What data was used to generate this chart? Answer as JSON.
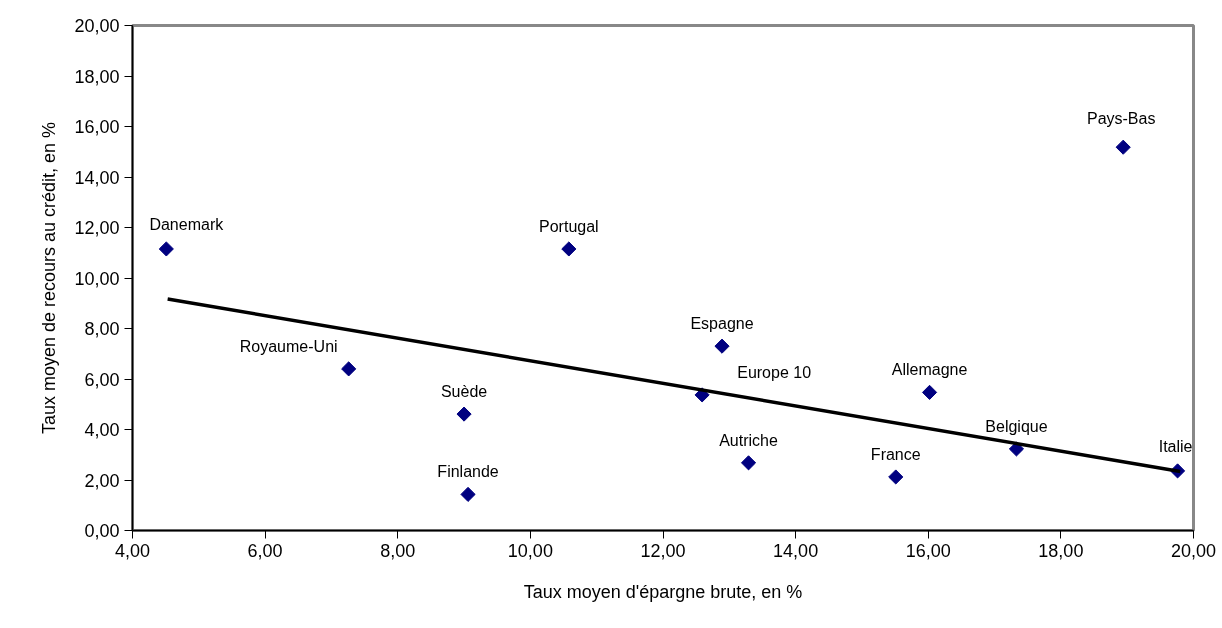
{
  "chart_data": {
    "type": "scatter",
    "xlabel": "Taux moyen d'épargne brute, en %",
    "ylabel": "Taux moyen de recours au crédit, en %",
    "xlim": [
      4,
      20
    ],
    "ylim": [
      0,
      20
    ],
    "xticks": [
      {
        "value": 4,
        "label": "4,00"
      },
      {
        "value": 6,
        "label": "6,00"
      },
      {
        "value": 8,
        "label": "8,00"
      },
      {
        "value": 10,
        "label": "10,00"
      },
      {
        "value": 12,
        "label": "12,00"
      },
      {
        "value": 14,
        "label": "14,00"
      },
      {
        "value": 16,
        "label": "16,00"
      },
      {
        "value": 18,
        "label": "18,00"
      },
      {
        "value": 20,
        "label": "20,00"
      }
    ],
    "yticks": [
      {
        "value": 0,
        "label": "0,00"
      },
      {
        "value": 2,
        "label": "2,00"
      },
      {
        "value": 4,
        "label": "4,00"
      },
      {
        "value": 6,
        "label": "6,00"
      },
      {
        "value": 8,
        "label": "8,00"
      },
      {
        "value": 10,
        "label": "10,00"
      },
      {
        "value": 12,
        "label": "12,00"
      },
      {
        "value": 14,
        "label": "14,00"
      },
      {
        "value": 16,
        "label": "16,00"
      },
      {
        "value": 18,
        "label": "18,00"
      },
      {
        "value": 20,
        "label": "20,00"
      }
    ],
    "grid": false,
    "series": [
      {
        "marker": "diamond",
        "color": "#000080",
        "x": [
          4.51,
          10.58,
          18.94,
          7.26,
          9.0,
          9.06,
          12.89,
          12.59,
          16.02,
          13.29,
          15.51,
          17.33,
          19.76
        ],
        "values": [
          11.15,
          11.15,
          15.18,
          6.4,
          4.61,
          1.43,
          7.3,
          5.37,
          5.47,
          2.68,
          2.12,
          3.23,
          2.36
        ]
      },
      {
        "type": "line",
        "color": "#000000",
        "x": [
          4.53,
          19.8
        ],
        "values": [
          9.17,
          2.34
        ]
      }
    ],
    "annotations": [
      {
        "text": "Danemark",
        "x": 4.51,
        "y": 11.15
      },
      {
        "text": "Portugal",
        "x": 10.58,
        "y": 11.15
      },
      {
        "text": "Pays-Bas",
        "x": 18.94,
        "y": 15.18
      },
      {
        "text": "Royaume-Uni",
        "x": 7.26,
        "y": 6.4
      },
      {
        "text": "Suède",
        "x": 9.0,
        "y": 4.61
      },
      {
        "text": "Finlande",
        "x": 9.06,
        "y": 1.43
      },
      {
        "text": "Espagne",
        "x": 12.89,
        "y": 7.3
      },
      {
        "text": "Europe 10",
        "x": 12.59,
        "y": 5.37
      },
      {
        "text": "Allemagne",
        "x": 16.02,
        "y": 5.47
      },
      {
        "text": "Autriche",
        "x": 13.29,
        "y": 2.68
      },
      {
        "text": "France",
        "x": 15.51,
        "y": 2.12
      },
      {
        "text": "Belgique",
        "x": 17.33,
        "y": 3.23
      },
      {
        "text": "Italie",
        "x": 19.76,
        "y": 2.36
      }
    ]
  }
}
